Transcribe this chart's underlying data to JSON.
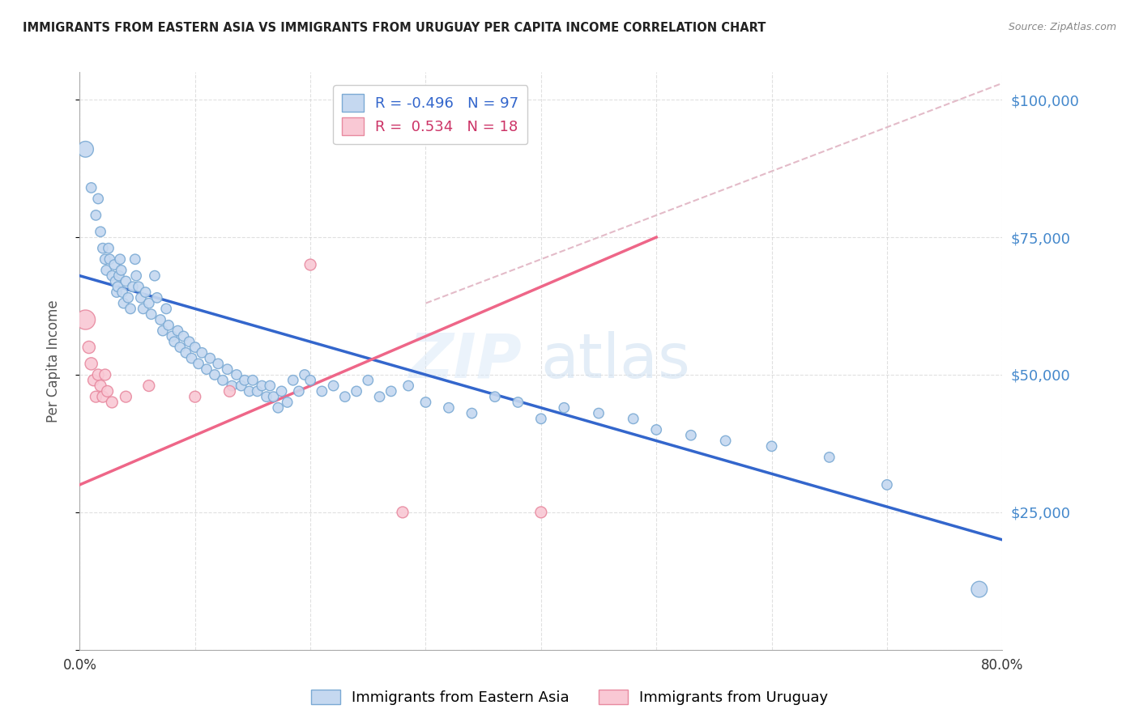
{
  "title": "IMMIGRANTS FROM EASTERN ASIA VS IMMIGRANTS FROM URUGUAY PER CAPITA INCOME CORRELATION CHART",
  "source": "Source: ZipAtlas.com",
  "ylabel": "Per Capita Income",
  "xmin": 0.0,
  "xmax": 0.8,
  "ymin": 0,
  "ymax": 105000,
  "watermark_top": "ZIP",
  "watermark_bot": "atlas",
  "legend_r1": "R = -0.496",
  "legend_n1": "N = 97",
  "legend_r2": "R =  0.534",
  "legend_n2": "N = 18",
  "blue_line_color": "#3366CC",
  "pink_line_color": "#EE6688",
  "dashed_color": "#DDAABB",
  "blue_trend_x": [
    0.0,
    0.8
  ],
  "blue_trend_y": [
    68000,
    20000
  ],
  "pink_trend_x": [
    0.0,
    0.5
  ],
  "pink_trend_y": [
    30000,
    75000
  ],
  "dashed_trend_x": [
    0.3,
    0.8
  ],
  "dashed_trend_y": [
    63000,
    103000
  ],
  "blue_scatter": [
    [
      0.005,
      91000
    ],
    [
      0.01,
      84000
    ],
    [
      0.014,
      79000
    ],
    [
      0.016,
      82000
    ],
    [
      0.018,
      76000
    ],
    [
      0.02,
      73000
    ],
    [
      0.022,
      71000
    ],
    [
      0.023,
      69000
    ],
    [
      0.025,
      73000
    ],
    [
      0.026,
      71000
    ],
    [
      0.028,
      68000
    ],
    [
      0.03,
      70000
    ],
    [
      0.031,
      67000
    ],
    [
      0.032,
      65000
    ],
    [
      0.033,
      66000
    ],
    [
      0.034,
      68000
    ],
    [
      0.035,
      71000
    ],
    [
      0.036,
      69000
    ],
    [
      0.037,
      65000
    ],
    [
      0.038,
      63000
    ],
    [
      0.04,
      67000
    ],
    [
      0.042,
      64000
    ],
    [
      0.044,
      62000
    ],
    [
      0.046,
      66000
    ],
    [
      0.048,
      71000
    ],
    [
      0.049,
      68000
    ],
    [
      0.051,
      66000
    ],
    [
      0.053,
      64000
    ],
    [
      0.055,
      62000
    ],
    [
      0.057,
      65000
    ],
    [
      0.06,
      63000
    ],
    [
      0.062,
      61000
    ],
    [
      0.065,
      68000
    ],
    [
      0.067,
      64000
    ],
    [
      0.07,
      60000
    ],
    [
      0.072,
      58000
    ],
    [
      0.075,
      62000
    ],
    [
      0.077,
      59000
    ],
    [
      0.08,
      57000
    ],
    [
      0.082,
      56000
    ],
    [
      0.085,
      58000
    ],
    [
      0.087,
      55000
    ],
    [
      0.09,
      57000
    ],
    [
      0.092,
      54000
    ],
    [
      0.095,
      56000
    ],
    [
      0.097,
      53000
    ],
    [
      0.1,
      55000
    ],
    [
      0.103,
      52000
    ],
    [
      0.106,
      54000
    ],
    [
      0.11,
      51000
    ],
    [
      0.113,
      53000
    ],
    [
      0.117,
      50000
    ],
    [
      0.12,
      52000
    ],
    [
      0.124,
      49000
    ],
    [
      0.128,
      51000
    ],
    [
      0.132,
      48000
    ],
    [
      0.136,
      50000
    ],
    [
      0.14,
      48000
    ],
    [
      0.143,
      49000
    ],
    [
      0.147,
      47000
    ],
    [
      0.15,
      49000
    ],
    [
      0.154,
      47000
    ],
    [
      0.158,
      48000
    ],
    [
      0.162,
      46000
    ],
    [
      0.165,
      48000
    ],
    [
      0.168,
      46000
    ],
    [
      0.172,
      44000
    ],
    [
      0.175,
      47000
    ],
    [
      0.18,
      45000
    ],
    [
      0.185,
      49000
    ],
    [
      0.19,
      47000
    ],
    [
      0.195,
      50000
    ],
    [
      0.2,
      49000
    ],
    [
      0.21,
      47000
    ],
    [
      0.22,
      48000
    ],
    [
      0.23,
      46000
    ],
    [
      0.24,
      47000
    ],
    [
      0.25,
      49000
    ],
    [
      0.26,
      46000
    ],
    [
      0.27,
      47000
    ],
    [
      0.285,
      48000
    ],
    [
      0.3,
      45000
    ],
    [
      0.32,
      44000
    ],
    [
      0.34,
      43000
    ],
    [
      0.36,
      46000
    ],
    [
      0.38,
      45000
    ],
    [
      0.4,
      42000
    ],
    [
      0.42,
      44000
    ],
    [
      0.45,
      43000
    ],
    [
      0.48,
      42000
    ],
    [
      0.5,
      40000
    ],
    [
      0.53,
      39000
    ],
    [
      0.56,
      38000
    ],
    [
      0.6,
      37000
    ],
    [
      0.65,
      35000
    ],
    [
      0.7,
      30000
    ],
    [
      0.78,
      11000
    ]
  ],
  "blue_scatter_sizes": [
    200,
    80,
    80,
    80,
    80,
    80,
    80,
    80,
    80,
    80,
    80,
    80,
    80,
    80,
    80,
    80,
    80,
    80,
    80,
    80,
    80,
    80,
    80,
    80,
    80,
    80,
    80,
    80,
    80,
    80,
    80,
    80,
    80,
    80,
    80,
    80,
    80,
    80,
    80,
    80,
    80,
    80,
    80,
    80,
    80,
    80,
    80,
    80,
    80,
    80,
    80,
    80,
    80,
    80,
    80,
    80,
    80,
    80,
    80,
    80,
    80,
    80,
    80,
    80,
    80,
    80,
    80,
    80,
    80,
    80,
    80,
    80,
    80,
    80,
    80,
    80,
    80,
    80,
    80,
    80,
    80,
    80,
    80,
    80,
    80,
    80,
    80,
    80,
    80,
    80,
    80,
    80,
    80,
    80,
    80,
    80,
    200
  ],
  "pink_scatter": [
    [
      0.005,
      60000
    ],
    [
      0.008,
      55000
    ],
    [
      0.01,
      52000
    ],
    [
      0.012,
      49000
    ],
    [
      0.014,
      46000
    ],
    [
      0.016,
      50000
    ],
    [
      0.018,
      48000
    ],
    [
      0.02,
      46000
    ],
    [
      0.022,
      50000
    ],
    [
      0.024,
      47000
    ],
    [
      0.028,
      45000
    ],
    [
      0.04,
      46000
    ],
    [
      0.06,
      48000
    ],
    [
      0.1,
      46000
    ],
    [
      0.13,
      47000
    ],
    [
      0.2,
      70000
    ],
    [
      0.28,
      25000
    ],
    [
      0.4,
      25000
    ]
  ],
  "pink_scatter_sizes": [
    300,
    120,
    120,
    100,
    100,
    100,
    100,
    100,
    100,
    100,
    100,
    100,
    100,
    100,
    100,
    100,
    100,
    100
  ]
}
